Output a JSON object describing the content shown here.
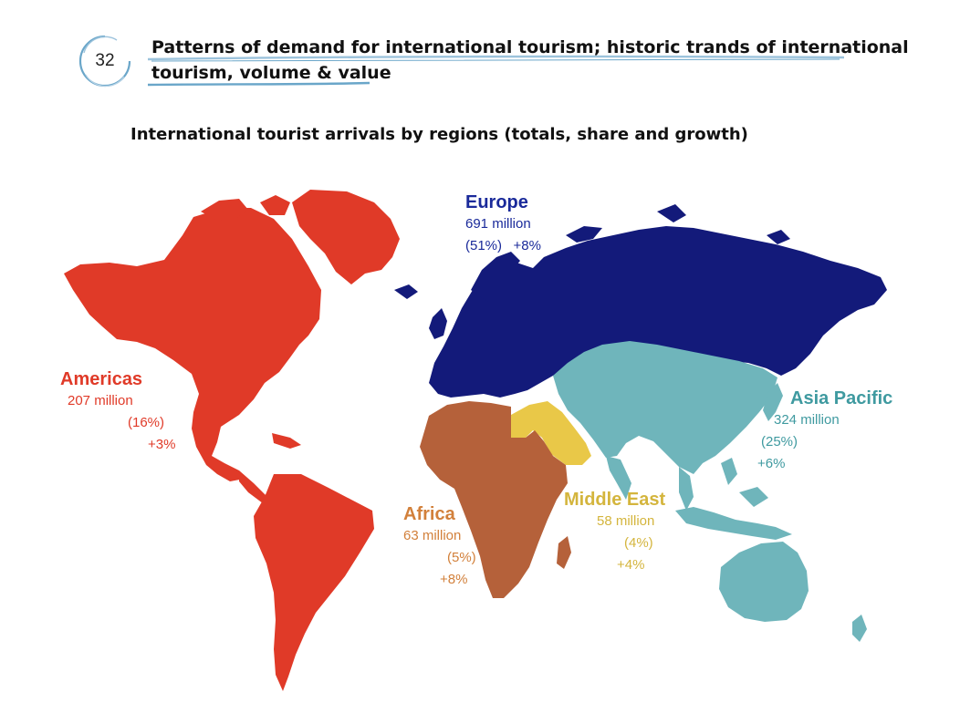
{
  "header": {
    "page_number": "32",
    "title_line1": "Patterns of demand for international tourism; historic trands of international",
    "title_line2": "tourism, volume & value"
  },
  "map": {
    "title": "International tourist arrivals by regions (totals, share and growth)",
    "regions": {
      "europe": {
        "name": "Europe",
        "total": "691 million",
        "share": "(51%)",
        "growth": "+8%",
        "color": "#131a7a"
      },
      "americas": {
        "name": "Americas",
        "total": "207 million",
        "share": "(16%)",
        "growth": "+3%",
        "color": "#e03a28"
      },
      "asia_pacific": {
        "name": "Asia Pacific",
        "total": "324 million",
        "share": "(25%)",
        "growth": "+6%",
        "color": "#6fb5bb"
      },
      "africa": {
        "name": "Africa",
        "total": "63 million",
        "share": "(5%)",
        "growth": "+8%",
        "color": "#b5613a"
      },
      "middle_east": {
        "name": "Middle East",
        "total": "58 million",
        "share": "(4%)",
        "growth": "+4%",
        "color": "#e9c848"
      }
    }
  }
}
